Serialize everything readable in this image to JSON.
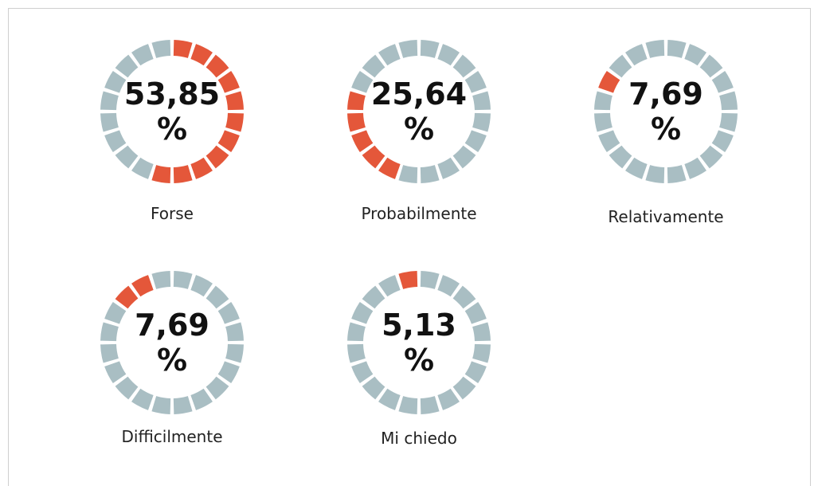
{
  "gauges": [
    {
      "label": "Forse",
      "value": 53.85,
      "value_label": "53,85 %"
    },
    {
      "label": "Probabilmente",
      "value": 25.64,
      "value_label": "25,64 %"
    },
    {
      "label": "Relativamente",
      "value": 7.69,
      "value_label": "7,69 %"
    },
    {
      "label": "Difficilmente",
      "value": 7.69,
      "value_label": "7,69 %"
    },
    {
      "label": "Mi chiedo",
      "value": 5.13,
      "value_label": "5,13 %"
    }
  ],
  "colors": {
    "filled": "#e4573a",
    "empty": "#a9bec3"
  }
}
